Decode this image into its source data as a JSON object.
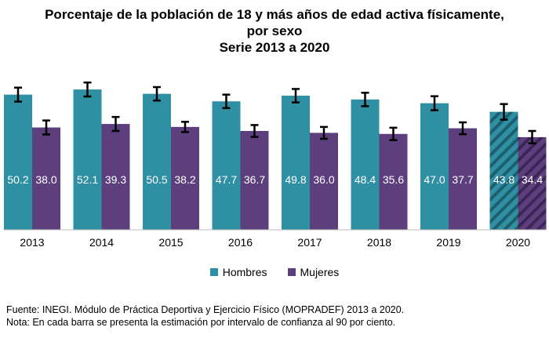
{
  "title": {
    "line1": "Porcentaje de la población de 18 y más años de edad activa físicamente,",
    "line2": "por sexo",
    "line3": "Serie 2013 a 2020"
  },
  "colors": {
    "hombres": "#2f8fa3",
    "mujeres": "#5e3f7e",
    "errorbar": "#000000",
    "label": "#ffffff"
  },
  "chart_data": {
    "type": "bar",
    "categories": [
      "2013",
      "2014",
      "2015",
      "2016",
      "2017",
      "2018",
      "2019",
      "2020"
    ],
    "series": [
      {
        "name": "Hombres",
        "values": [
          50.2,
          52.1,
          50.5,
          47.7,
          49.8,
          48.4,
          47.0,
          43.8
        ],
        "ci_low": [
          47.6,
          49.5,
          48.0,
          45.2,
          47.3,
          45.9,
          44.4,
          40.9
        ],
        "ci_high": [
          52.8,
          54.7,
          53.0,
          50.2,
          52.3,
          50.9,
          49.6,
          46.7
        ]
      },
      {
        "name": "Mujeres",
        "values": [
          38.0,
          39.3,
          38.2,
          36.7,
          36.0,
          35.6,
          37.7,
          34.4
        ],
        "ci_low": [
          35.4,
          36.7,
          36.3,
          34.5,
          33.8,
          33.3,
          35.5,
          32.1
        ],
        "ci_high": [
          40.6,
          41.9,
          40.1,
          38.9,
          38.2,
          37.9,
          39.9,
          36.7
        ]
      }
    ],
    "hatched_categories": [
      "2020"
    ],
    "ylim": [
      0,
      60
    ],
    "xlabel": "",
    "ylabel": "",
    "legend_position": "bottom"
  },
  "footer": {
    "source": "Fuente: INEGI. Módulo de Práctica Deportiva y Ejercicio Físico (MOPRADEF) 2013 a 2020.",
    "note": "Nota: En cada barra se presenta la estimación por intervalo de confianza al 90 por ciento."
  }
}
